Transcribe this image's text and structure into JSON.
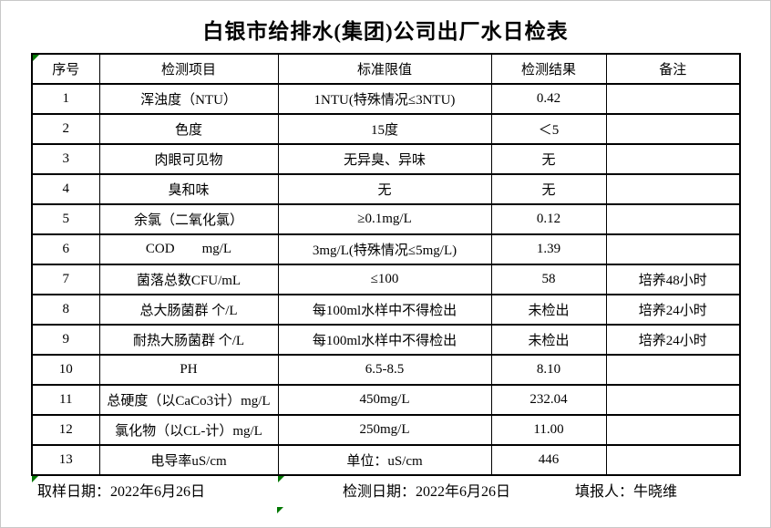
{
  "title": "白银市给排水(集团)公司出厂水日检表",
  "table": {
    "headers": [
      "序号",
      "检测项目",
      "标准限值",
      "检测结果",
      "备注"
    ],
    "rows": [
      {
        "no": "1",
        "item": "浑浊度（NTU）",
        "limit": "1NTU(特殊情况≤3NTU)",
        "result": "0.42",
        "remark": ""
      },
      {
        "no": "2",
        "item": "色度",
        "limit": "15度",
        "result": "＜5",
        "remark": ""
      },
      {
        "no": "3",
        "item": "肉眼可见物",
        "limit": "无异臭、异味",
        "result": "无",
        "remark": ""
      },
      {
        "no": "4",
        "item": "臭和味",
        "limit": "无",
        "result": "无",
        "remark": ""
      },
      {
        "no": "5",
        "item": "余氯（二氧化氯）",
        "limit": "≥0.1mg/L",
        "result": "0.12",
        "remark": ""
      },
      {
        "no": "6",
        "item": "COD        mg/L",
        "limit": "3mg/L(特殊情况≤5mg/L)",
        "result": "1.39",
        "remark": ""
      },
      {
        "no": "7",
        "item": "菌落总数CFU/mL",
        "limit": "≤100",
        "result": "58",
        "remark": "培养48小时"
      },
      {
        "no": "8",
        "item": "总大肠菌群 个/L",
        "limit": "每100ml水样中不得检出",
        "result": "未检出",
        "remark": "培养24小时"
      },
      {
        "no": "9",
        "item": "耐热大肠菌群 个/L",
        "limit": "每100ml水样中不得检出",
        "result": "未检出",
        "remark": "培养24小时"
      },
      {
        "no": "10",
        "item": "PH",
        "limit": "6.5-8.5",
        "result": "8.10",
        "remark": ""
      },
      {
        "no": "11",
        "item": "总硬度（以CaCo3计）mg/L",
        "limit": "450mg/L",
        "result": "232.04",
        "remark": ""
      },
      {
        "no": "12",
        "item": "氯化物（以CL-计）mg/L",
        "limit": "250mg/L",
        "result": "11.00",
        "remark": ""
      },
      {
        "no": "13",
        "item": "电导率uS/cm",
        "limit": "单位：uS/cm",
        "result": "446",
        "remark": ""
      }
    ]
  },
  "footer": {
    "sampling_date": "取样日期：2022年6月26日",
    "test_date": "检测日期：2022年6月26日",
    "reporter": "填报人：牛晓维"
  },
  "colors": {
    "border": "#000000",
    "flag_green": "#007700",
    "background": "#ffffff"
  }
}
